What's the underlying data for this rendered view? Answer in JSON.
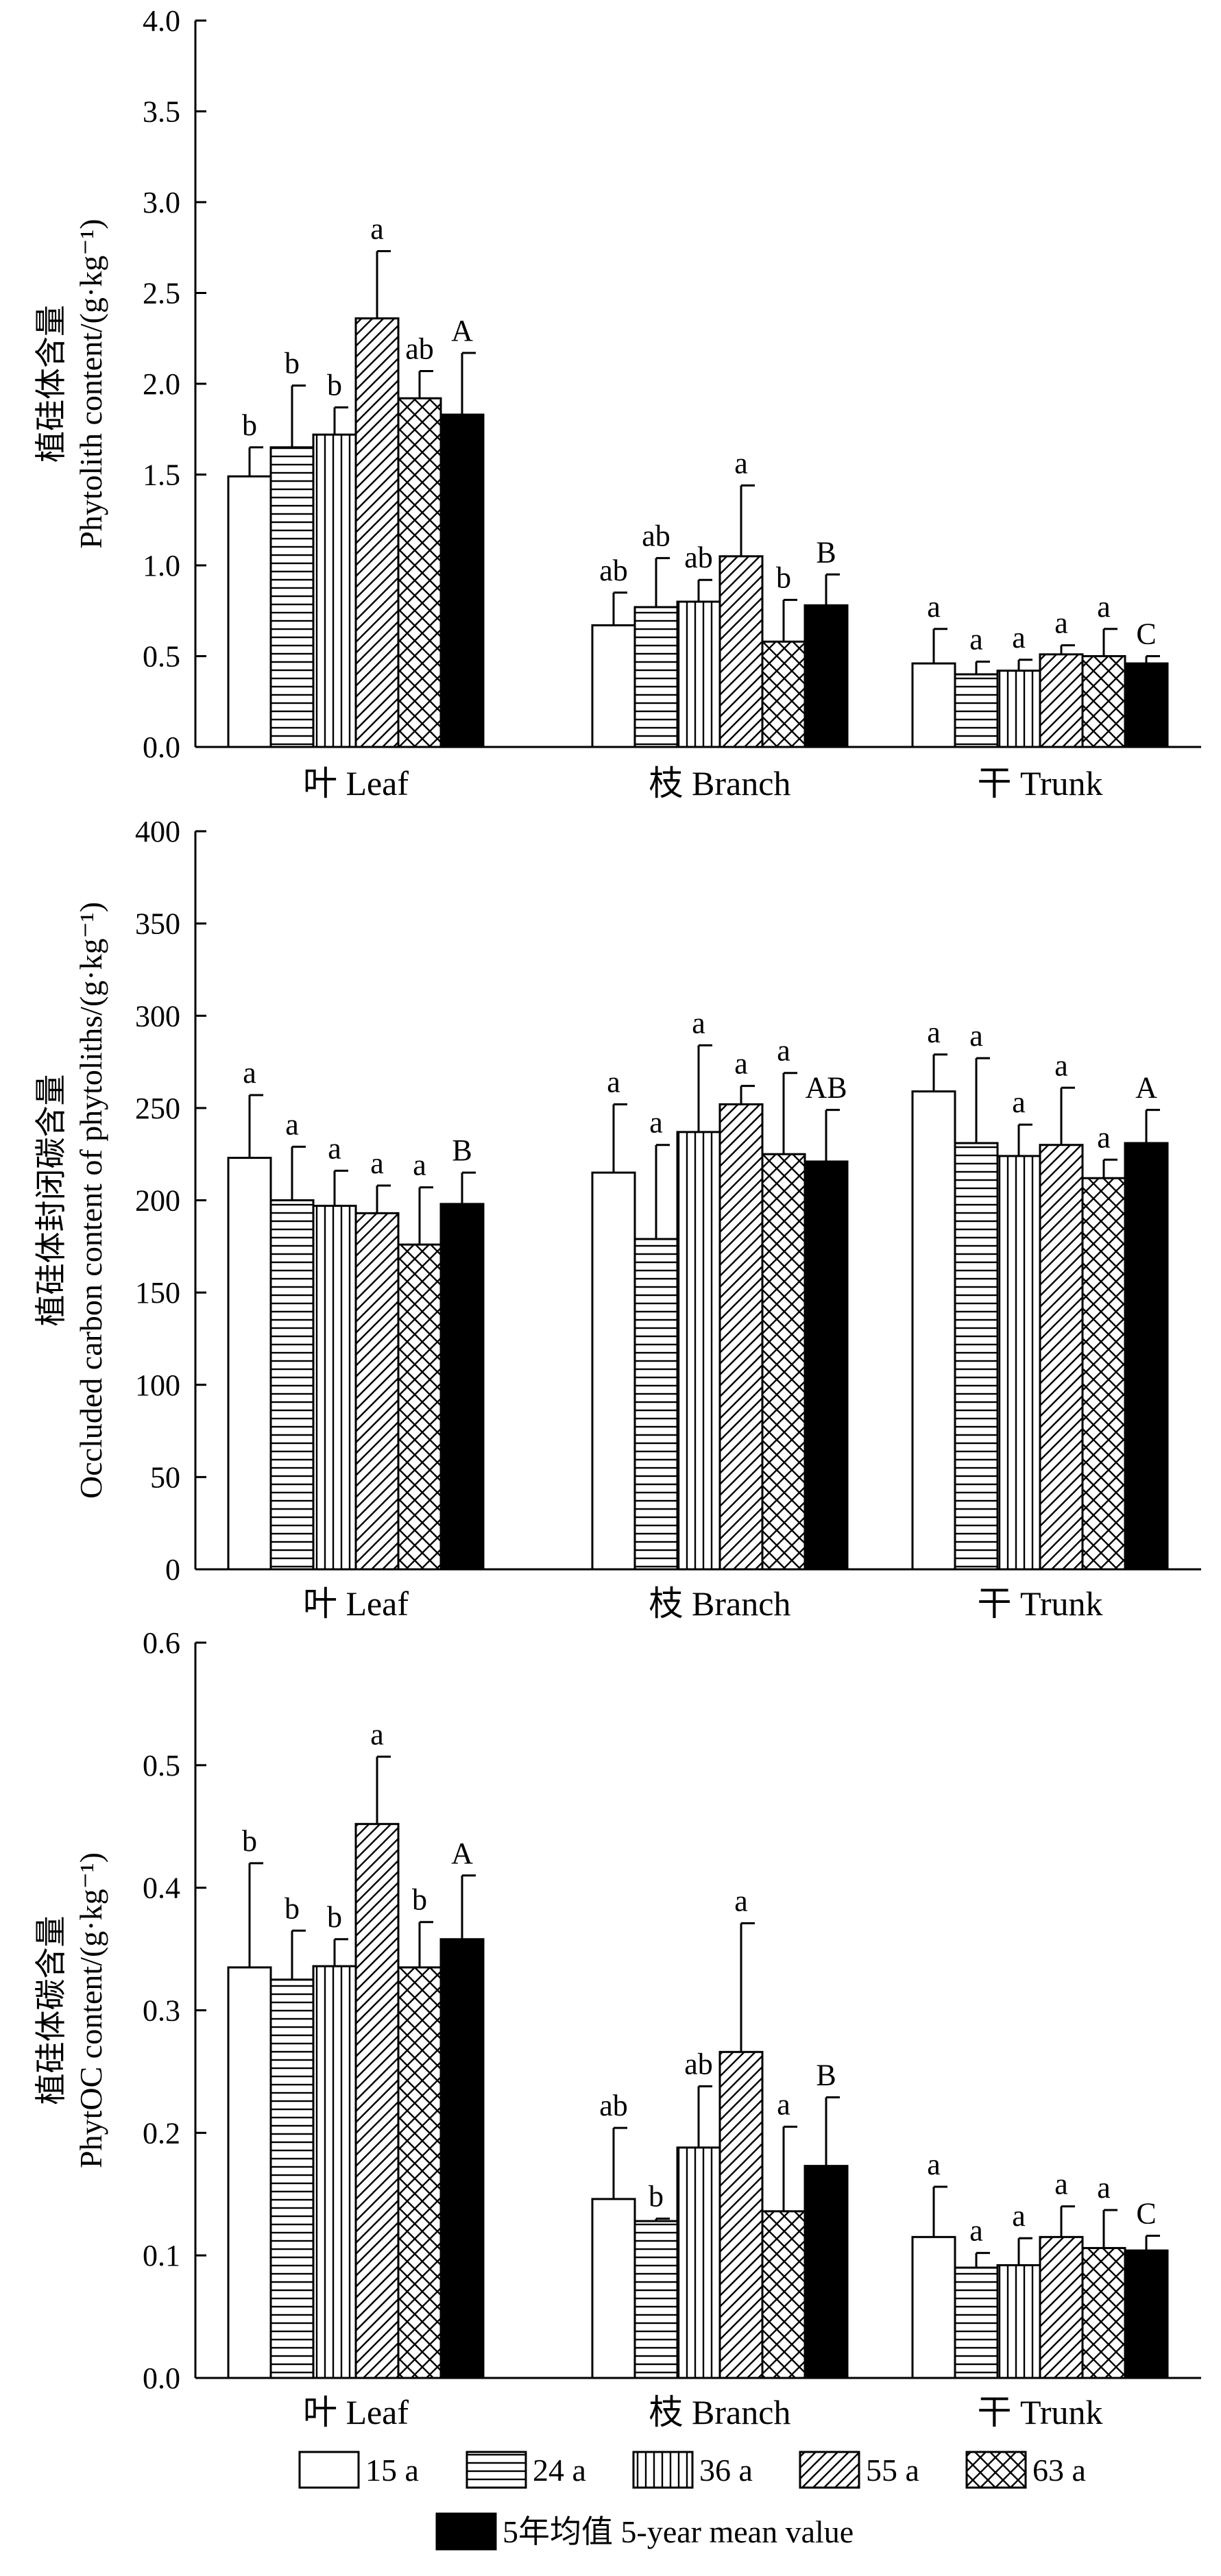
{
  "figure": {
    "categories": [
      "叶 Leaf",
      "枝 Branch",
      "干 Trunk"
    ],
    "series": [
      {
        "name": "15 a",
        "pattern": "blank"
      },
      {
        "name": "24 a",
        "pattern": "horizontal"
      },
      {
        "name": "36 a",
        "pattern": "vertical"
      },
      {
        "name": "55 a",
        "pattern": "diagonal"
      },
      {
        "name": "63 a",
        "pattern": "crosshatch"
      },
      {
        "name": "5年均值  5-year mean value",
        "pattern": "solid"
      }
    ]
  },
  "chart_data": [
    {
      "type": "bar",
      "ylabel": [
        "植硅体含量",
        "Phytolith content/(g·kg⁻¹)"
      ],
      "ylim": [
        0,
        4
      ],
      "yticks": [
        "0.0",
        "0.5",
        "1.0",
        "1.5",
        "2.0",
        "2.5",
        "3.0",
        "3.5",
        "4.0"
      ],
      "categories": [
        "叶 Leaf",
        "枝 Branch",
        "干 Trunk"
      ],
      "series": [
        {
          "name": "15 a",
          "values": [
            1.49,
            0.67,
            0.46
          ],
          "errors": [
            0.16,
            0.18,
            0.19
          ],
          "labels": [
            "b",
            "ab",
            "a"
          ]
        },
        {
          "name": "24 a",
          "values": [
            1.65,
            0.77,
            0.4
          ],
          "errors": [
            0.34,
            0.27,
            0.07
          ],
          "labels": [
            "b",
            "ab",
            "a"
          ]
        },
        {
          "name": "36 a",
          "values": [
            1.72,
            0.8,
            0.42
          ],
          "errors": [
            0.15,
            0.12,
            0.06
          ],
          "labels": [
            "b",
            "ab",
            "a"
          ]
        },
        {
          "name": "55 a",
          "values": [
            2.36,
            1.05,
            0.51
          ],
          "errors": [
            0.37,
            0.39,
            0.05
          ],
          "labels": [
            "a",
            "a",
            "a"
          ]
        },
        {
          "name": "63 a",
          "values": [
            1.92,
            0.58,
            0.5
          ],
          "errors": [
            0.15,
            0.23,
            0.15
          ],
          "labels": [
            "ab",
            "b",
            "a"
          ]
        },
        {
          "name": "5年均值  5-year mean value",
          "values": [
            1.83,
            0.78,
            0.46
          ],
          "errors": [
            0.34,
            0.17,
            0.04
          ],
          "labels": [
            "A",
            "B",
            "C"
          ]
        }
      ]
    },
    {
      "type": "bar",
      "ylabel": [
        "植硅体封闭碳含量",
        "Occluded carbon content of phytoliths/(g·kg⁻¹)"
      ],
      "ylim": [
        0,
        400
      ],
      "yticks": [
        "0",
        "50",
        "100",
        "150",
        "200",
        "250",
        "300",
        "350",
        "400"
      ],
      "categories": [
        "叶 Leaf",
        "枝 Branch",
        "干 Trunk"
      ],
      "series": [
        {
          "name": "15 a",
          "values": [
            223,
            215,
            259
          ],
          "errors": [
            34,
            37,
            20
          ],
          "labels": [
            "a",
            "a",
            "a"
          ]
        },
        {
          "name": "24 a",
          "values": [
            200,
            179,
            231
          ],
          "errors": [
            29,
            51,
            46
          ],
          "labels": [
            "a",
            "a",
            "a"
          ]
        },
        {
          "name": "36 a",
          "values": [
            197,
            237,
            224
          ],
          "errors": [
            19,
            47,
            17
          ],
          "labels": [
            "a",
            "a",
            "a"
          ]
        },
        {
          "name": "55 a",
          "values": [
            193,
            252,
            230
          ],
          "errors": [
            15,
            10,
            31
          ],
          "labels": [
            "a",
            "a",
            "a"
          ]
        },
        {
          "name": "63 a",
          "values": [
            176,
            225,
            212
          ],
          "errors": [
            31,
            44,
            10
          ],
          "labels": [
            "a",
            "a",
            "a"
          ]
        },
        {
          "name": "5年均值  5-year mean value",
          "values": [
            198,
            221,
            231
          ],
          "errors": [
            17,
            28,
            18
          ],
          "labels": [
            "B",
            "AB",
            "A"
          ]
        }
      ]
    },
    {
      "type": "bar",
      "ylabel": [
        "植硅体碳含量",
        "PhytOC content/(g·kg⁻¹)"
      ],
      "ylim": [
        0,
        0.6
      ],
      "yticks": [
        "0.0",
        "0.1",
        "0.2",
        "0.3",
        "0.4",
        "0.5",
        "0.6"
      ],
      "categories": [
        "叶 Leaf",
        "枝 Branch",
        "干 Trunk"
      ],
      "series": [
        {
          "name": "15 a",
          "values": [
            0.335,
            0.146,
            0.115
          ],
          "errors": [
            0.085,
            0.058,
            0.041
          ],
          "labels": [
            "b",
            "ab",
            "a"
          ]
        },
        {
          "name": "24 a",
          "values": [
            0.325,
            0.128,
            0.09
          ],
          "errors": [
            0.04,
            0.002,
            0.012
          ],
          "labels": [
            "b",
            "b",
            "a"
          ]
        },
        {
          "name": "36 a",
          "values": [
            0.336,
            0.188,
            0.092
          ],
          "errors": [
            0.022,
            0.05,
            0.022
          ],
          "labels": [
            "b",
            "ab",
            "a"
          ]
        },
        {
          "name": "55 a",
          "values": [
            0.452,
            0.266,
            0.115
          ],
          "errors": [
            0.055,
            0.105,
            0.025
          ],
          "labels": [
            "a",
            "a",
            "a"
          ]
        },
        {
          "name": "63 a",
          "values": [
            0.335,
            0.136,
            0.106
          ],
          "errors": [
            0.037,
            0.069,
            0.031
          ],
          "labels": [
            "b",
            "a",
            "a"
          ]
        },
        {
          "name": "5年均值  5-year mean value",
          "values": [
            0.358,
            0.173,
            0.104
          ],
          "errors": [
            0.052,
            0.056,
            0.012
          ],
          "labels": [
            "A",
            "B",
            "C"
          ]
        }
      ]
    }
  ]
}
